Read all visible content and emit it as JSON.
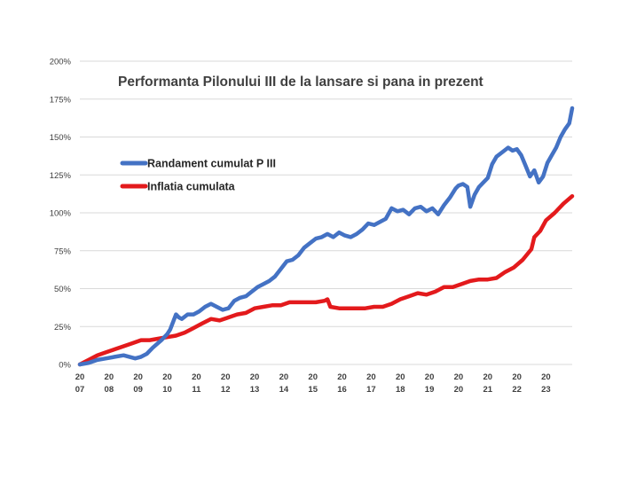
{
  "chart_data": {
    "type": "line",
    "title": "Performanta Pilonului III de la lansare si pana in prezent",
    "xlabel": "",
    "ylabel": "",
    "ylim": [
      0,
      200
    ],
    "yticks": [
      "0%",
      "25%",
      "50%",
      "75%",
      "100%",
      "125%",
      "150%",
      "175%",
      "200%"
    ],
    "ytick_values": [
      0,
      25,
      50,
      75,
      100,
      125,
      150,
      175,
      200
    ],
    "xlim": [
      2007.0,
      2023.9
    ],
    "xticks": [
      {
        "top": "20",
        "bottom": "07",
        "x": 2007.0
      },
      {
        "top": "20",
        "bottom": "08",
        "x": 2008.0
      },
      {
        "top": "20",
        "bottom": "09",
        "x": 2009.0
      },
      {
        "top": "20",
        "bottom": "10",
        "x": 2010.0
      },
      {
        "top": "20",
        "bottom": "11",
        "x": 2011.0
      },
      {
        "top": "20",
        "bottom": "12",
        "x": 2012.0
      },
      {
        "top": "20",
        "bottom": "13",
        "x": 2013.0
      },
      {
        "top": "20",
        "bottom": "14",
        "x": 2014.0
      },
      {
        "top": "20",
        "bottom": "15",
        "x": 2015.0
      },
      {
        "top": "20",
        "bottom": "16",
        "x": 2016.0
      },
      {
        "top": "20",
        "bottom": "17",
        "x": 2017.0
      },
      {
        "top": "20",
        "bottom": "18",
        "x": 2018.0
      },
      {
        "top": "20",
        "bottom": "19",
        "x": 2019.0
      },
      {
        "top": "20",
        "bottom": "20",
        "x": 2020.0
      },
      {
        "top": "20",
        "bottom": "21",
        "x": 2021.0
      },
      {
        "top": "20",
        "bottom": "22",
        "x": 2022.0
      },
      {
        "top": "20",
        "bottom": "23",
        "x": 2023.0
      }
    ],
    "grid": true,
    "legend_position": "left",
    "series": [
      {
        "name": "Randament cumulat P III",
        "color": "#4472c4",
        "points": [
          [
            2007.0,
            0
          ],
          [
            2007.3,
            1
          ],
          [
            2007.6,
            3
          ],
          [
            2007.9,
            4
          ],
          [
            2008.2,
            5
          ],
          [
            2008.5,
            6
          ],
          [
            2008.7,
            5
          ],
          [
            2008.9,
            4
          ],
          [
            2009.1,
            5
          ],
          [
            2009.3,
            7
          ],
          [
            2009.5,
            11
          ],
          [
            2009.8,
            16
          ],
          [
            2010.0,
            20
          ],
          [
            2010.1,
            23
          ],
          [
            2010.3,
            33
          ],
          [
            2010.4,
            31
          ],
          [
            2010.5,
            30
          ],
          [
            2010.7,
            33
          ],
          [
            2010.9,
            33
          ],
          [
            2011.1,
            35
          ],
          [
            2011.3,
            38
          ],
          [
            2011.5,
            40
          ],
          [
            2011.7,
            38
          ],
          [
            2011.9,
            36
          ],
          [
            2012.1,
            37
          ],
          [
            2012.3,
            42
          ],
          [
            2012.5,
            44
          ],
          [
            2012.7,
            45
          ],
          [
            2012.9,
            48
          ],
          [
            2013.1,
            51
          ],
          [
            2013.3,
            53
          ],
          [
            2013.5,
            55
          ],
          [
            2013.7,
            58
          ],
          [
            2013.9,
            63
          ],
          [
            2014.1,
            68
          ],
          [
            2014.3,
            69
          ],
          [
            2014.5,
            72
          ],
          [
            2014.7,
            77
          ],
          [
            2014.9,
            80
          ],
          [
            2015.1,
            83
          ],
          [
            2015.3,
            84
          ],
          [
            2015.5,
            86
          ],
          [
            2015.7,
            84
          ],
          [
            2015.9,
            87
          ],
          [
            2016.1,
            85
          ],
          [
            2016.3,
            84
          ],
          [
            2016.5,
            86
          ],
          [
            2016.7,
            89
          ],
          [
            2016.9,
            93
          ],
          [
            2017.1,
            92
          ],
          [
            2017.3,
            94
          ],
          [
            2017.5,
            96
          ],
          [
            2017.7,
            103
          ],
          [
            2017.9,
            101
          ],
          [
            2018.1,
            102
          ],
          [
            2018.3,
            99
          ],
          [
            2018.5,
            103
          ],
          [
            2018.7,
            104
          ],
          [
            2018.9,
            101
          ],
          [
            2019.1,
            103
          ],
          [
            2019.3,
            99
          ],
          [
            2019.5,
            105
          ],
          [
            2019.7,
            110
          ],
          [
            2019.9,
            116
          ],
          [
            2020.0,
            118
          ],
          [
            2020.15,
            119
          ],
          [
            2020.3,
            117
          ],
          [
            2020.4,
            104
          ],
          [
            2020.55,
            112
          ],
          [
            2020.7,
            117
          ],
          [
            2020.85,
            120
          ],
          [
            2021.0,
            123
          ],
          [
            2021.15,
            132
          ],
          [
            2021.3,
            137
          ],
          [
            2021.5,
            140
          ],
          [
            2021.7,
            143
          ],
          [
            2021.85,
            141
          ],
          [
            2022.0,
            142
          ],
          [
            2022.15,
            138
          ],
          [
            2022.3,
            131
          ],
          [
            2022.45,
            124
          ],
          [
            2022.6,
            128
          ],
          [
            2022.75,
            120
          ],
          [
            2022.9,
            124
          ],
          [
            2023.05,
            133
          ],
          [
            2023.2,
            138
          ],
          [
            2023.35,
            143
          ],
          [
            2023.5,
            150
          ],
          [
            2023.65,
            155
          ],
          [
            2023.8,
            159
          ],
          [
            2023.9,
            169
          ]
        ]
      },
      {
        "name": "Inflatia cumulata",
        "color": "#e31a1c",
        "points": [
          [
            2007.0,
            0
          ],
          [
            2007.3,
            3
          ],
          [
            2007.6,
            6
          ],
          [
            2007.9,
            8
          ],
          [
            2008.2,
            10
          ],
          [
            2008.5,
            12
          ],
          [
            2008.8,
            14
          ],
          [
            2009.1,
            16
          ],
          [
            2009.4,
            16
          ],
          [
            2009.7,
            17
          ],
          [
            2010.0,
            18
          ],
          [
            2010.3,
            19
          ],
          [
            2010.6,
            21
          ],
          [
            2010.9,
            24
          ],
          [
            2011.2,
            27
          ],
          [
            2011.5,
            30
          ],
          [
            2011.8,
            29
          ],
          [
            2012.1,
            31
          ],
          [
            2012.4,
            33
          ],
          [
            2012.7,
            34
          ],
          [
            2013.0,
            37
          ],
          [
            2013.3,
            38
          ],
          [
            2013.6,
            39
          ],
          [
            2013.9,
            39
          ],
          [
            2014.2,
            41
          ],
          [
            2014.5,
            41
          ],
          [
            2014.8,
            41
          ],
          [
            2015.1,
            41
          ],
          [
            2015.4,
            42
          ],
          [
            2015.5,
            43
          ],
          [
            2015.6,
            38
          ],
          [
            2015.9,
            37
          ],
          [
            2016.2,
            37
          ],
          [
            2016.5,
            37
          ],
          [
            2016.8,
            37
          ],
          [
            2017.1,
            38
          ],
          [
            2017.4,
            38
          ],
          [
            2017.7,
            40
          ],
          [
            2018.0,
            43
          ],
          [
            2018.3,
            45
          ],
          [
            2018.6,
            47
          ],
          [
            2018.9,
            46
          ],
          [
            2019.2,
            48
          ],
          [
            2019.5,
            51
          ],
          [
            2019.8,
            51
          ],
          [
            2020.1,
            53
          ],
          [
            2020.4,
            55
          ],
          [
            2020.7,
            56
          ],
          [
            2021.0,
            56
          ],
          [
            2021.3,
            57
          ],
          [
            2021.6,
            61
          ],
          [
            2021.9,
            64
          ],
          [
            2022.2,
            69
          ],
          [
            2022.5,
            76
          ],
          [
            2022.6,
            84
          ],
          [
            2022.8,
            88
          ],
          [
            2023.0,
            95
          ],
          [
            2023.3,
            100
          ],
          [
            2023.6,
            106
          ],
          [
            2023.9,
            111
          ]
        ]
      }
    ]
  }
}
